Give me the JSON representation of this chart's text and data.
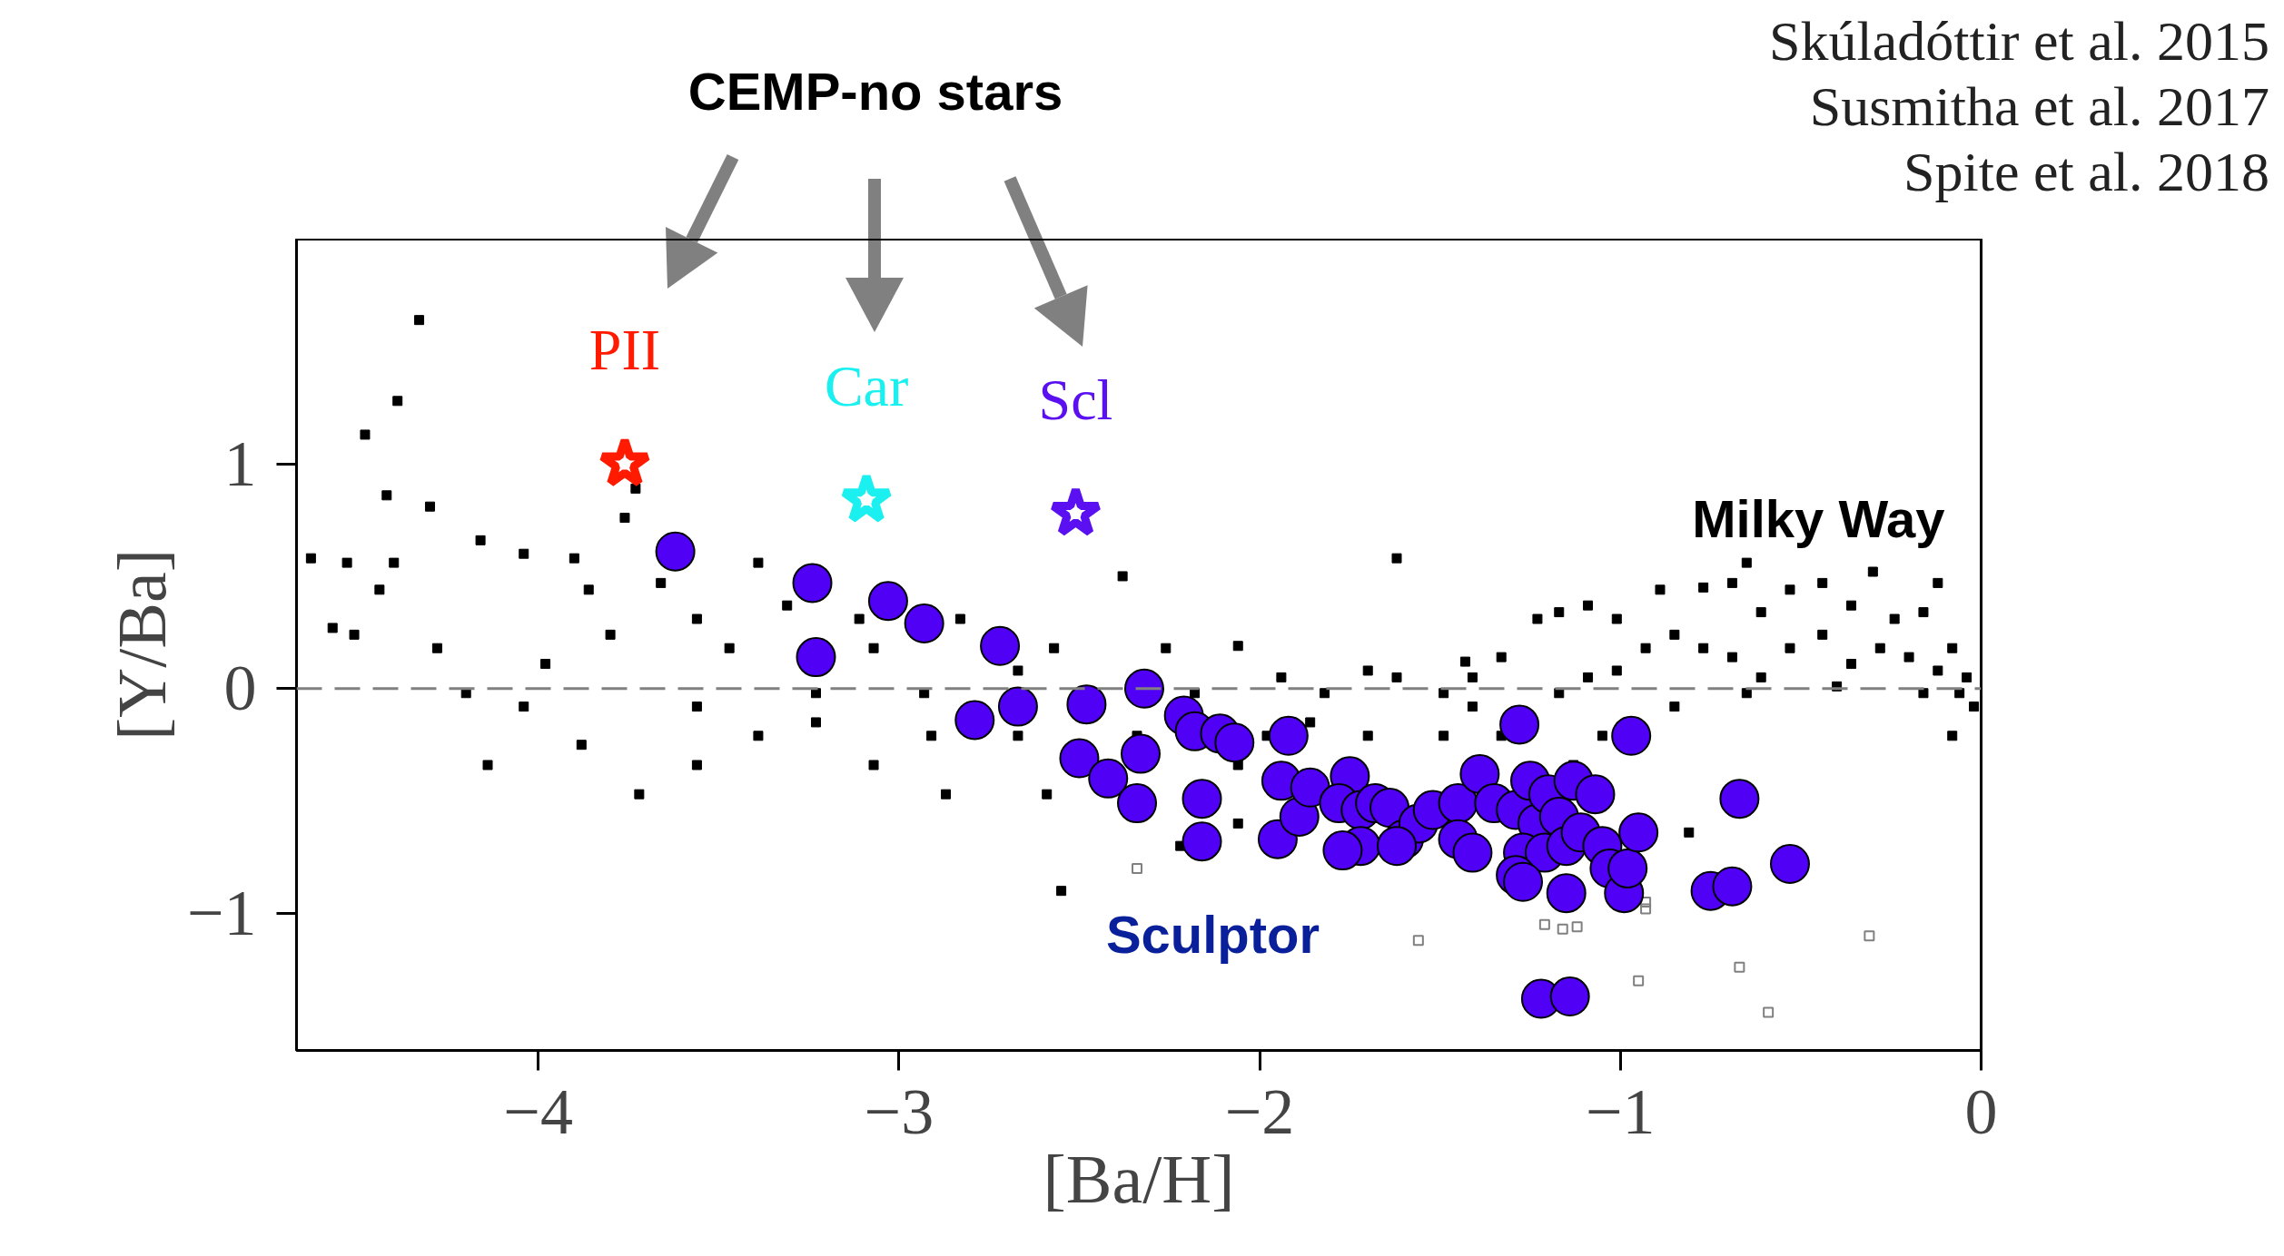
{
  "chart_data": {
    "type": "scatter",
    "xlabel": "[Ba/H]",
    "ylabel": "[Y/Ba]",
    "xlim": [
      -4.67,
      0
    ],
    "ylim": [
      -1.61,
      2.0
    ],
    "xticks": [
      {
        "value": -4,
        "label": "−4"
      },
      {
        "value": -3,
        "label": "−3"
      },
      {
        "value": -2,
        "label": "−2"
      },
      {
        "value": -1,
        "label": "−1"
      },
      0
    ],
    "yticks": [
      {
        "value": -1,
        "label": "−1"
      },
      0,
      1
    ],
    "grid": false,
    "legend": false,
    "ref_lines": [
      {
        "axis": "y",
        "value": 0,
        "label": null,
        "color": "#808080",
        "line_style": "dashed"
      }
    ],
    "annotations": [
      "CEMP-no stars",
      "Skúladóttir et al. 2015",
      "Susmitha et al. 2017",
      "Spite et al. 2018"
    ],
    "series": [
      {
        "name": "Milky Way",
        "color": "#000000",
        "marker": "square",
        "x": [
          -4.33,
          -4.39,
          -4.48,
          -4.42,
          -4.3,
          -4.53,
          -4.4,
          -4.16,
          -4.04,
          -3.9,
          -3.86,
          -3.76,
          -3.73,
          -3.66,
          -3.56,
          -3.47,
          -3.39,
          -3.31,
          -3.23,
          -3.11,
          -3.07,
          -2.93,
          -2.83,
          -2.67,
          -2.57,
          -2.38,
          -2.26,
          -2.06,
          -1.94,
          -1.82,
          -1.62,
          -1.7,
          -1.49,
          -1.43,
          -1.33,
          -1.23,
          -1.17,
          -1.09,
          -1.01,
          -0.89,
          -0.77,
          -0.69,
          -0.61,
          -0.53,
          -0.44,
          -0.36,
          -0.3,
          -0.24,
          -0.16,
          -0.08,
          -0.04,
          -0.02,
          -0.06,
          -0.12,
          -0.2,
          -0.28,
          -0.36,
          -0.44,
          -0.53,
          -0.61,
          -0.69,
          -0.77,
          -0.85,
          -0.93,
          -1.01,
          -1.09,
          -1.17,
          -1.33,
          -1.41,
          -0.85,
          -0.65,
          -0.4,
          -0.16,
          -0.08,
          -1.05,
          -1.13,
          -0.81,
          -1.62,
          -1.86,
          -1.98,
          -2.06,
          -2.18,
          -2.34,
          -2.55,
          -2.67,
          -2.87,
          -3.07,
          -3.23,
          -3.39,
          -3.56,
          -3.72,
          -3.88,
          -4.04,
          -4.14,
          -4.2,
          -4.28,
          -4.44,
          -4.57,
          -4.63,
          -4.51,
          -3.98,
          -3.8,
          -3.56,
          -2.91,
          -2.59,
          -2.22,
          -0.12,
          -0.65,
          -1.41,
          -1.49,
          -1.7,
          -2.06
        ],
        "values": [
          1.64,
          1.28,
          1.13,
          0.86,
          0.81,
          0.56,
          0.56,
          0.66,
          0.6,
          0.58,
          0.44,
          0.76,
          0.89,
          0.47,
          0.31,
          0.18,
          0.56,
          0.37,
          -0.02,
          0.31,
          0.18,
          -0.02,
          0.31,
          0.08,
          0.18,
          0.5,
          0.18,
          0.19,
          0.05,
          -0.02,
          0.58,
          0.08,
          -0.02,
          0.12,
          0.14,
          0.31,
          0.34,
          0.37,
          0.31,
          0.44,
          0.45,
          0.47,
          0.34,
          0.44,
          0.47,
          0.37,
          0.52,
          0.31,
          0.34,
          0.18,
          0.05,
          -0.08,
          -0.02,
          0.08,
          0.14,
          0.18,
          0.11,
          0.24,
          0.18,
          0.05,
          0.14,
          0.18,
          0.24,
          0.18,
          0.08,
          0.05,
          -0.02,
          -0.21,
          -0.08,
          -0.08,
          -0.02,
          0.01,
          -0.02,
          -0.21,
          -0.21,
          -0.34,
          -0.64,
          0.05,
          -0.15,
          -0.21,
          -0.34,
          -0.02,
          -0.21,
          -0.9,
          -0.21,
          -0.47,
          -0.34,
          -0.15,
          -0.21,
          -0.34,
          -0.47,
          -0.25,
          -0.08,
          -0.34,
          -0.02,
          0.18,
          0.44,
          0.27,
          0.58,
          0.24,
          0.11,
          0.24,
          -0.08,
          -0.21,
          -0.47,
          -0.7,
          0.47,
          0.56,
          0.05,
          -0.21,
          -0.21,
          -0.6
        ]
      },
      {
        "color": "#808080",
        "marker": "square",
        "x": [
          -2.34,
          -1.56,
          -1.21,
          -1.16,
          -1.12,
          -0.93,
          -0.93,
          -0.95,
          -0.67,
          -0.59,
          -0.31
        ],
        "values": [
          -0.8,
          -1.12,
          -1.05,
          -1.07,
          -1.06,
          -0.95,
          -0.98,
          -1.3,
          -1.24,
          -1.44,
          -1.1
        ]
      },
      {
        "name": "Sculptor",
        "color": "#4f00f5",
        "marker": "circle",
        "x": [
          -3.62,
          -3.24,
          -3.23,
          -3.03,
          -2.93,
          -2.72,
          -2.79,
          -2.67,
          -2.48,
          -2.32,
          -2.5,
          -2.42,
          -2.33,
          -2.34,
          -2.21,
          -2.18,
          -2.11,
          -2.07,
          -2.16,
          -2.16,
          -1.92,
          -1.94,
          -1.95,
          -1.89,
          -1.86,
          -1.75,
          -1.78,
          -1.72,
          -1.68,
          -1.72,
          -1.77,
          -1.64,
          -1.6,
          -1.56,
          -1.52,
          -1.45,
          -1.39,
          -1.28,
          -1.35,
          -1.29,
          -1.25,
          -1.23,
          -1.2,
          -1.17,
          -1.27,
          -1.21,
          -1.15,
          -1.11,
          -1.29,
          -1.27,
          -1.15,
          -1.13,
          -1.07,
          -1.05,
          -1.03,
          -0.99,
          -0.98,
          -0.97,
          -0.95,
          -0.75,
          -0.69,
          -0.67,
          -0.53,
          -1.22,
          -1.14,
          -1.45,
          -1.62,
          -1.41
        ],
        "values": [
          0.61,
          0.47,
          0.14,
          0.39,
          0.29,
          0.19,
          -0.14,
          -0.08,
          -0.07,
          0.0,
          -0.31,
          -0.4,
          -0.29,
          -0.51,
          -0.12,
          -0.19,
          -0.2,
          -0.24,
          -0.49,
          -0.68,
          -0.21,
          -0.41,
          -0.67,
          -0.57,
          -0.44,
          -0.39,
          -0.51,
          -0.54,
          -0.51,
          -0.7,
          -0.72,
          -0.53,
          -0.67,
          -0.6,
          -0.54,
          -0.51,
          -0.38,
          -0.16,
          -0.51,
          -0.54,
          -0.41,
          -0.6,
          -0.47,
          -0.57,
          -0.73,
          -0.73,
          -0.7,
          -0.64,
          -0.83,
          -0.86,
          -0.91,
          -0.41,
          -0.47,
          -0.7,
          -0.8,
          -0.91,
          -0.8,
          -0.21,
          -0.64,
          -0.9,
          -0.88,
          -0.49,
          -0.78,
          -1.38,
          -1.37,
          -0.67,
          -0.7,
          -0.73
        ]
      },
      {
        "name": "PII",
        "color": "#ff1a00",
        "marker": "star",
        "x": [
          -3.76
        ],
        "values": [
          1.0
        ]
      },
      {
        "name": "Car",
        "color": "#1af0f0",
        "marker": "star",
        "x": [
          -3.09
        ],
        "values": [
          0.84
        ]
      },
      {
        "name": "Scl",
        "color": "#5a10f0",
        "marker": "star",
        "x": [
          -2.51
        ],
        "values": [
          0.78
        ]
      }
    ]
  }
}
